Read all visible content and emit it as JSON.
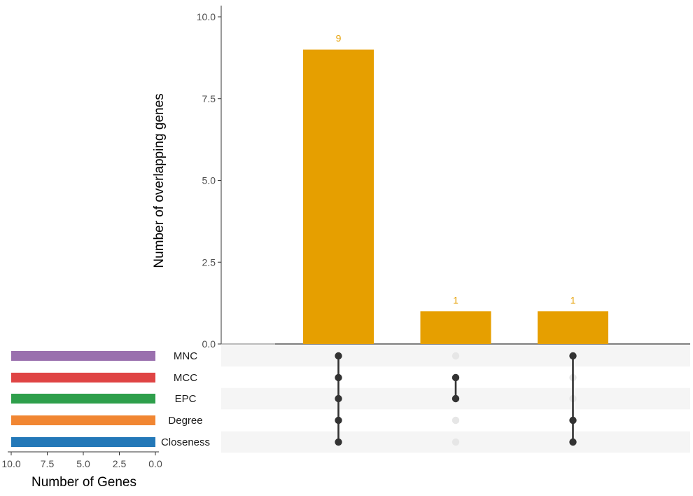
{
  "chart_data": {
    "type": "bar",
    "subtype": "upset",
    "intersections": [
      {
        "sets": [
          "MNC",
          "MCC",
          "EPC",
          "Degree",
          "Closeness"
        ],
        "value": 9
      },
      {
        "sets": [
          "MCC",
          "EPC"
        ],
        "value": 1
      },
      {
        "sets": [
          "MNC",
          "Degree",
          "Closeness"
        ],
        "value": 1
      }
    ],
    "values": [
      9,
      1,
      1
    ],
    "bar_labels": [
      "9",
      "1",
      "1"
    ],
    "ylabel": "Number of overlapping genes",
    "ylim": [
      0,
      10
    ],
    "yticks": [
      "0.0",
      "2.5",
      "5.0",
      "7.5",
      "10.0"
    ],
    "bar_color": "#E69F00",
    "label_color": "#E69F00",
    "sets": [
      {
        "name": "MNC",
        "size": 10,
        "color": "#9A70AE"
      },
      {
        "name": "MCC",
        "size": 10,
        "color": "#DF4444"
      },
      {
        "name": "EPC",
        "size": 10,
        "color": "#2E9F4B"
      },
      {
        "name": "Degree",
        "size": 10,
        "color": "#F18632"
      },
      {
        "name": "Closeness",
        "size": 10,
        "color": "#2378B8"
      }
    ],
    "set_size_xlabel": "Number of Genes",
    "set_size_xticks": [
      "10.0",
      "7.5",
      "5.0",
      "2.5",
      "0.0"
    ],
    "set_size_xlim": [
      10,
      0
    ],
    "dot_active_color": "#333333",
    "dot_inactive_color": "#E6E6E6",
    "row_stripe_color": "#F5F5F5"
  }
}
